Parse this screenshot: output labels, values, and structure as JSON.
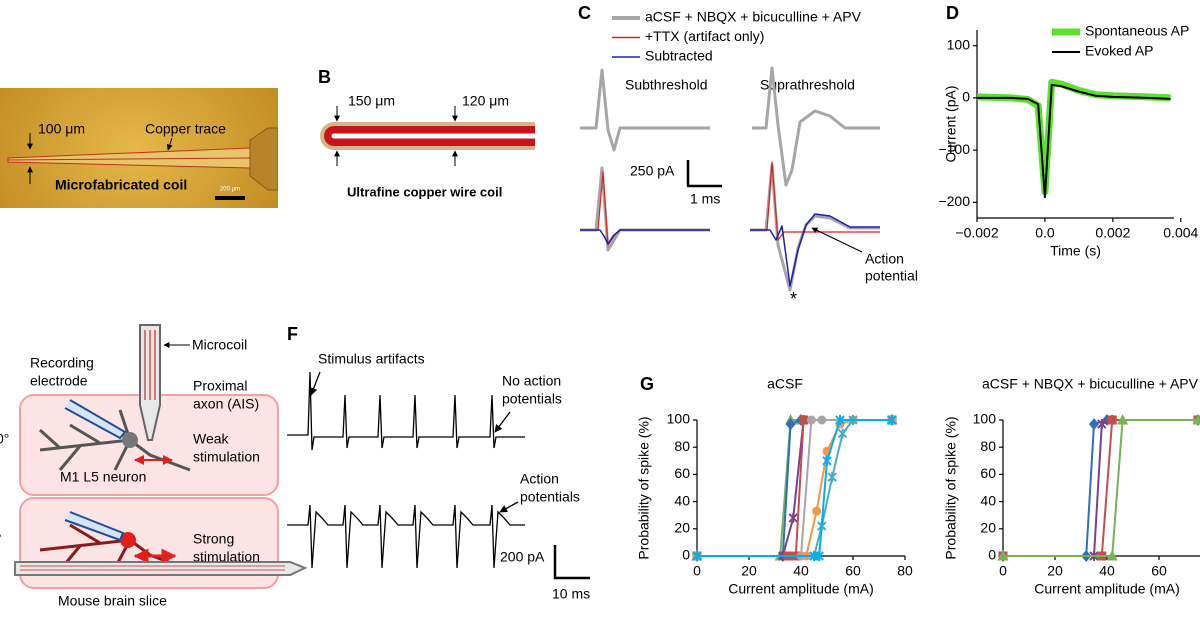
{
  "panel_a": {
    "coil_width": "100 μm",
    "trace_label": "Copper trace",
    "caption": "Microfabricated coil",
    "scale_bar": "200 μm"
  },
  "panel_b": {
    "letter": "B",
    "width_tip": "150 μm",
    "width_shaft": "120 μm",
    "caption": "Ultrafine copper wire coil"
  },
  "panel_c": {
    "letter": "C",
    "legend": [
      {
        "name": "aCSF + NBQX + bicuculline + APV",
        "color": "#a6a6a6"
      },
      {
        "name": "+TTX (artifact only)",
        "color": "#e0201b"
      },
      {
        "name": "Subtracted",
        "color": "#1f1fb4"
      }
    ],
    "subthreshold": "Subthreshold",
    "suprathreshold": "Suprathreshold",
    "scale_y": "250 pA",
    "scale_x": "1 ms",
    "annotation": [
      "Action",
      "potential"
    ],
    "marker": "*"
  },
  "panel_d": {
    "letter": "D",
    "type": "line",
    "xlabel": "Time (s)",
    "ylabel": "Current (pA)",
    "xlim": [
      -0.002,
      0.0038
    ],
    "ylim": [
      -230,
      130
    ],
    "xticks": [
      {
        "value": -0.002,
        "label": "−0.002"
      },
      {
        "value": 0,
        "label": "0.0"
      },
      0.002,
      0.004
    ],
    "yticks": [
      100,
      0,
      {
        "value": -100,
        "label": "−100"
      },
      {
        "value": -200,
        "label": "−200"
      }
    ],
    "series": [
      {
        "name": "Spontaneous AP",
        "color": "#5ce02e",
        "width": 7,
        "x": [
          -0.002,
          -0.001,
          -0.0005,
          -0.0002,
          0,
          0.0002,
          0.0005,
          0.001,
          0.0015,
          0.002,
          0.003,
          0.0037
        ],
        "values": [
          2,
          0,
          -3,
          -15,
          -180,
          30,
          26,
          14,
          6,
          4,
          2,
          0
        ]
      },
      {
        "name": "Evoked AP",
        "color": "#000000",
        "width": 2,
        "x": [
          -0.002,
          -0.001,
          -0.0005,
          -0.0002,
          0,
          0.0002,
          0.0005,
          0.001,
          0.0015,
          0.002,
          0.003,
          0.0037
        ],
        "values": [
          0,
          0,
          -2,
          -12,
          -190,
          25,
          22,
          12,
          4,
          2,
          0,
          -2
        ]
      }
    ]
  },
  "panel_e": {
    "microcoil": "Microcoil",
    "recording_electrode": [
      "Recording",
      "electrode"
    ],
    "proximal_axon": [
      "Proximal",
      "axon (AIS)"
    ],
    "weak": [
      "Weak",
      "stimulation"
    ],
    "neuron": "M1 L5 neuron",
    "strong": [
      "Strong",
      "stimulation"
    ],
    "slice": "Mouse brain slice",
    "edge_top": "0°",
    "edge_bottom": "°"
  },
  "panel_f": {
    "letter": "F",
    "artifacts": "Stimulus artifacts",
    "no_ap": [
      "No action",
      "potentials"
    ],
    "ap": [
      "Action",
      "potentials"
    ],
    "scale_y": "200 pA",
    "scale_x": "10 ms"
  },
  "panel_g": {
    "letter": "G",
    "charts": [
      {
        "type": "line",
        "title": "aCSF",
        "xlabel": "Current amplitude (mA)",
        "ylabel": "Probability of spike (%)",
        "xlim": [
          0,
          80
        ],
        "ylim": [
          0,
          100
        ],
        "xticks": [
          0,
          20,
          40,
          60,
          80
        ],
        "yticks": [
          0,
          20,
          40,
          60,
          80,
          100
        ],
        "series": [
          {
            "color": "#77b255",
            "marker": "triangle",
            "x": [
              0,
              32,
              36,
              40,
              75
            ],
            "values": [
              0,
              0,
              100,
              100,
              100
            ]
          },
          {
            "color": "#2e6fb7",
            "marker": "diamond",
            "x": [
              0,
              33,
              36,
              40,
              75
            ],
            "values": [
              0,
              0,
              97,
              100,
              100
            ]
          },
          {
            "color": "#7b3f8c",
            "marker": "cross",
            "x": [
              0,
              33,
              37,
              41,
              75
            ],
            "values": [
              0,
              0,
              28,
              100,
              100
            ]
          },
          {
            "color": "#c0504d",
            "marker": "square",
            "x": [
              0,
              35,
              38,
              41,
              75
            ],
            "values": [
              0,
              0,
              0,
              100,
              100
            ]
          },
          {
            "color": "#a6a6a6",
            "marker": "circle",
            "x": [
              0,
              40,
              44,
              48,
              75
            ],
            "values": [
              0,
              0,
              100,
              100,
              100
            ]
          },
          {
            "color": "#f79646",
            "marker": "circle",
            "x": [
              0,
              42,
              46,
              50,
              55,
              60,
              75
            ],
            "values": [
              0,
              0,
              33,
              77,
              97,
              100,
              100
            ]
          },
          {
            "color": "#4bacc6",
            "marker": "cross",
            "x": [
              0,
              45,
              48,
              52,
              56,
              60,
              75
            ],
            "values": [
              0,
              0,
              22,
              58,
              90,
              100,
              100
            ]
          },
          {
            "color": "#00b0f0",
            "marker": "cross",
            "x": [
              0,
              45,
              47,
              50,
              55,
              75
            ],
            "values": [
              0,
              0,
              0,
              70,
              100,
              100
            ]
          }
        ]
      },
      {
        "type": "line",
        "title": "aCSF + NBQX + bicuculline + APV",
        "xlabel": "Current amplitude (mA)",
        "ylabel": "Probability of spike (%)",
        "xlim": [
          0,
          80
        ],
        "ylim": [
          0,
          100
        ],
        "xticks": [
          0,
          20,
          40,
          60
        ],
        "yticks": [
          0,
          20,
          40,
          60,
          80,
          100
        ],
        "series": [
          {
            "color": "#2e6fb7",
            "marker": "diamond",
            "x": [
              0,
              32,
              35,
              40,
              75
            ],
            "values": [
              0,
              0,
              97,
              100,
              100
            ]
          },
          {
            "color": "#7b3f8c",
            "marker": "cross",
            "x": [
              0,
              35,
              38,
              42,
              75
            ],
            "values": [
              0,
              0,
              97,
              100,
              100
            ]
          },
          {
            "color": "#c0504d",
            "marker": "square",
            "x": [
              0,
              38,
              42,
              75
            ],
            "values": [
              0,
              0,
              100,
              100
            ]
          },
          {
            "color": "#77b255",
            "marker": "triangle",
            "x": [
              0,
              42,
              46,
              75
            ],
            "values": [
              0,
              0,
              100,
              100
            ]
          }
        ]
      }
    ]
  }
}
